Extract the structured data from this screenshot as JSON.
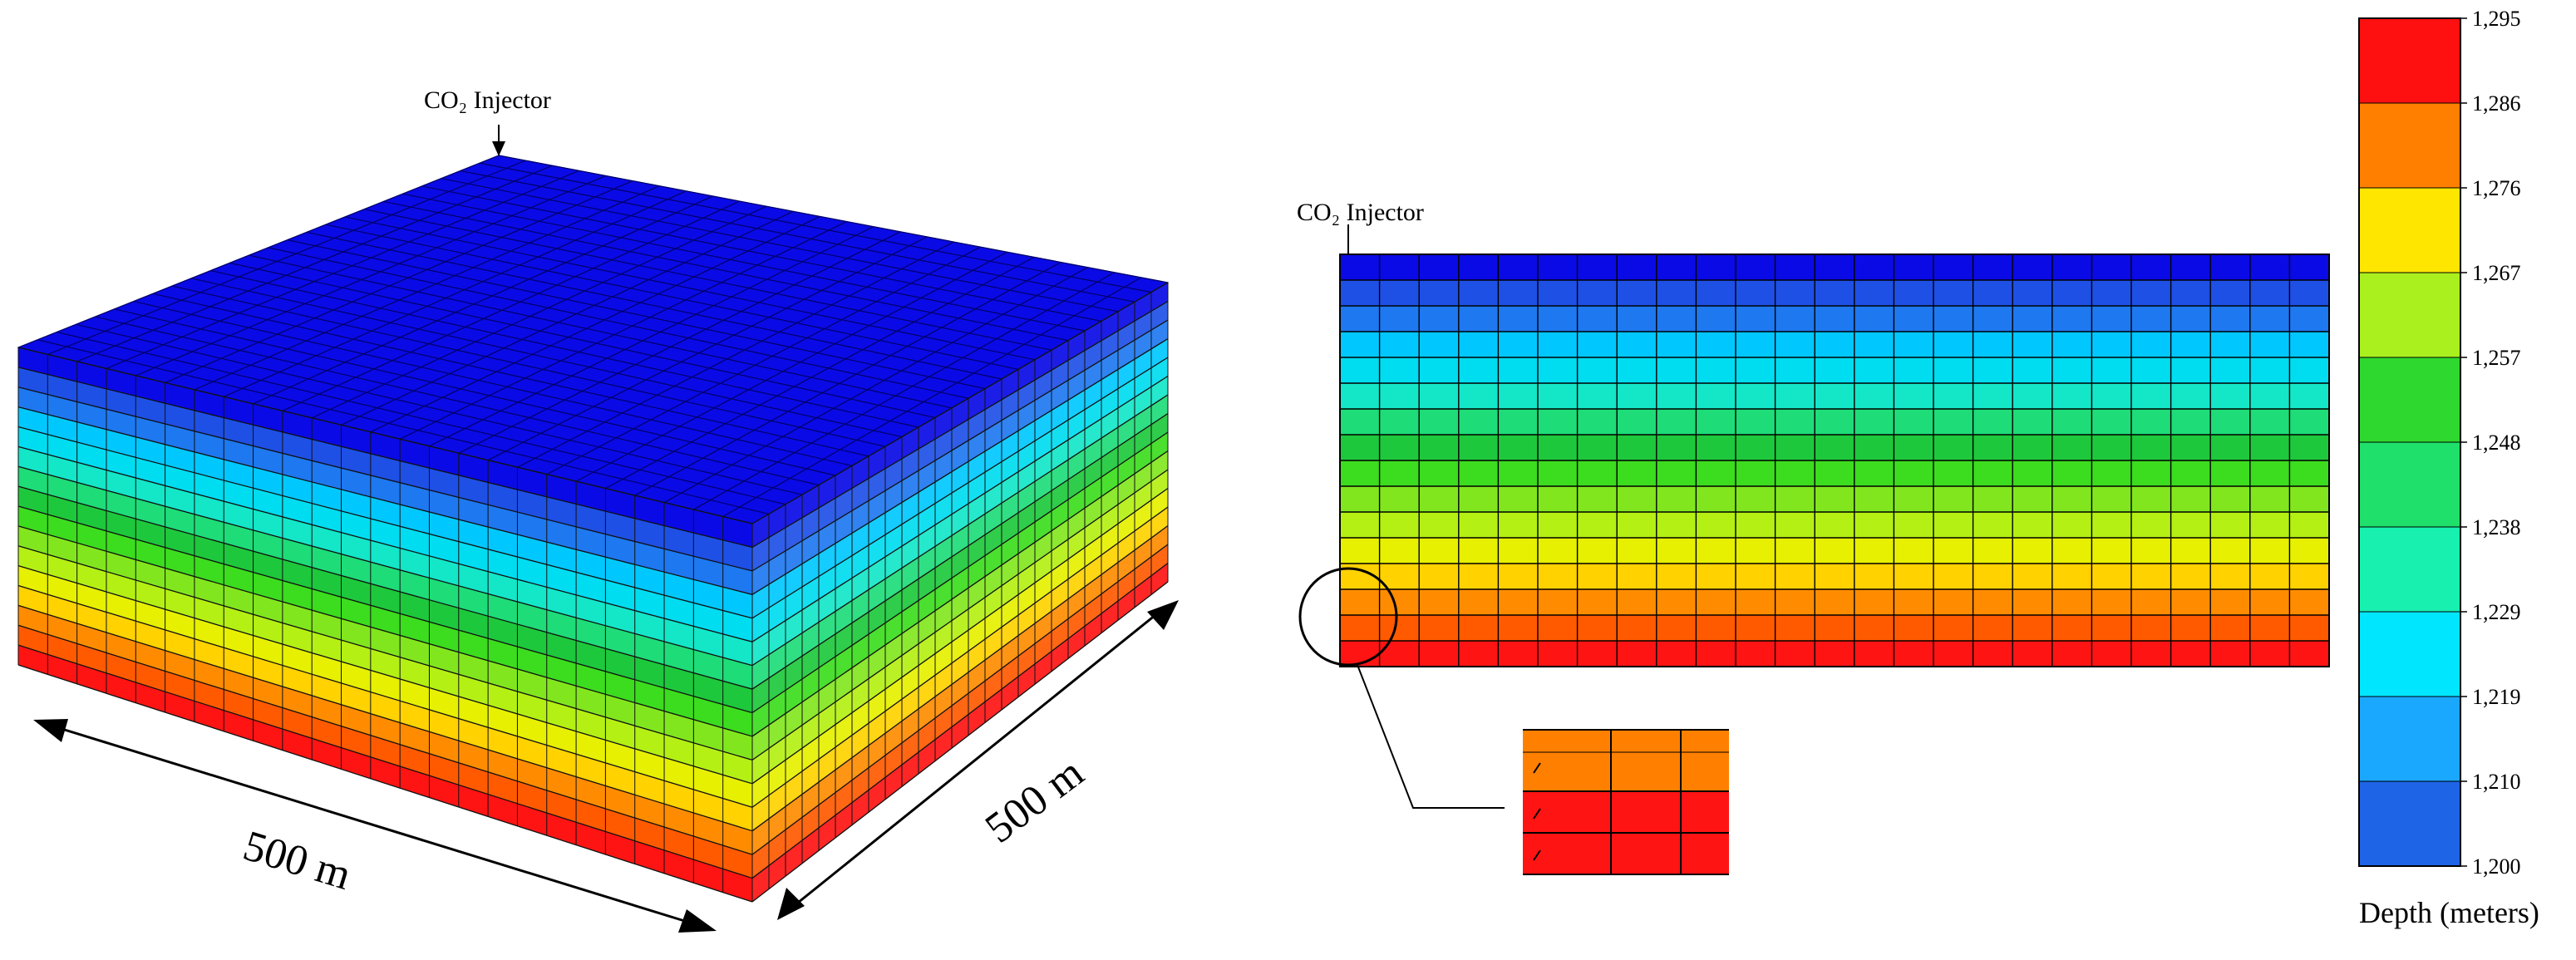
{
  "labels": {
    "injector_left": "CO₂ Injector",
    "injector_right": "CO₂ Injector",
    "dim_x": "500 m",
    "dim_y": "500 m",
    "colorbar_title": "Depth (meters)"
  },
  "colorbar": {
    "ticks": [
      "1,295",
      "1,286",
      "1,276",
      "1,267",
      "1,257",
      "1,248",
      "1,238",
      "1,229",
      "1,219",
      "1,210",
      "1,200"
    ],
    "colors": [
      "#ff1010",
      "#ff7f00",
      "#ffe600",
      "#aaef1e",
      "#2fd82f",
      "#1fe06a",
      "#18f0b0",
      "#00e6ff",
      "#1aa8ff",
      "#1e64e6",
      "#1414e6"
    ]
  },
  "model": {
    "layers": 16,
    "layer_colors": [
      "#0a0ae6",
      "#1e50e6",
      "#1e78f0",
      "#00c8ff",
      "#00dcf0",
      "#14e6c8",
      "#1edc78",
      "#1ec83c",
      "#3cdc1e",
      "#82e61e",
      "#b4f014",
      "#e6f000",
      "#ffd200",
      "#ff8c00",
      "#ff5a00",
      "#ff1414"
    ]
  }
}
